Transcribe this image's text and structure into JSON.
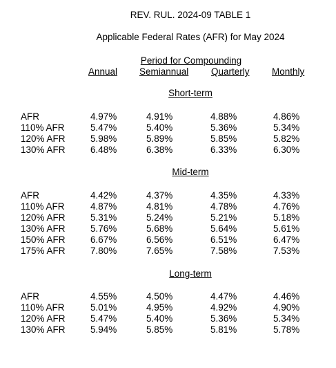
{
  "title": "REV. RUL. 2024-09 TABLE 1",
  "subtitle": "Applicable Federal Rates (AFR) for May 2024",
  "period_header": "Period for Compounding",
  "columns": [
    "Annual",
    "Semiannual",
    "Quarterly",
    "Monthly"
  ],
  "sections": [
    {
      "heading": "Short-term",
      "rows": [
        {
          "label": "AFR",
          "values": [
            "4.97%",
            "4.91%",
            "4.88%",
            "4.86%"
          ]
        },
        {
          "label": "110% AFR",
          "values": [
            "5.47%",
            "5.40%",
            "5.36%",
            "5.34%"
          ]
        },
        {
          "label": "120% AFR",
          "values": [
            "5.98%",
            "5.89%",
            "5.85%",
            "5.82%"
          ]
        },
        {
          "label": "130% AFR",
          "values": [
            "6.48%",
            "6.38%",
            "6.33%",
            "6.30%"
          ]
        }
      ]
    },
    {
      "heading": "Mid-term",
      "rows": [
        {
          "label": "AFR",
          "values": [
            "4.42%",
            "4.37%",
            "4.35%",
            "4.33%"
          ]
        },
        {
          "label": "110% AFR",
          "values": [
            "4.87%",
            "4.81%",
            "4.78%",
            "4.76%"
          ]
        },
        {
          "label": "120% AFR",
          "values": [
            "5.31%",
            "5.24%",
            "5.21%",
            "5.18%"
          ]
        },
        {
          "label": "130% AFR",
          "values": [
            "5.76%",
            "5.68%",
            "5.64%",
            "5.61%"
          ]
        },
        {
          "label": "150% AFR",
          "values": [
            "6.67%",
            "6.56%",
            "6.51%",
            "6.47%"
          ]
        },
        {
          "label": "175% AFR",
          "values": [
            "7.80%",
            "7.65%",
            "7.58%",
            "7.53%"
          ]
        }
      ]
    },
    {
      "heading": "Long-term",
      "rows": [
        {
          "label": "AFR",
          "values": [
            "4.55%",
            "4.50%",
            "4.47%",
            "4.46%"
          ]
        },
        {
          "label": "110% AFR",
          "values": [
            "5.01%",
            "4.95%",
            "4.92%",
            "4.90%"
          ]
        },
        {
          "label": "120% AFR",
          "values": [
            "5.47%",
            "5.40%",
            "5.36%",
            "5.34%"
          ]
        },
        {
          "label": "130% AFR",
          "values": [
            "5.94%",
            "5.85%",
            "5.81%",
            "5.78%"
          ]
        }
      ]
    }
  ]
}
